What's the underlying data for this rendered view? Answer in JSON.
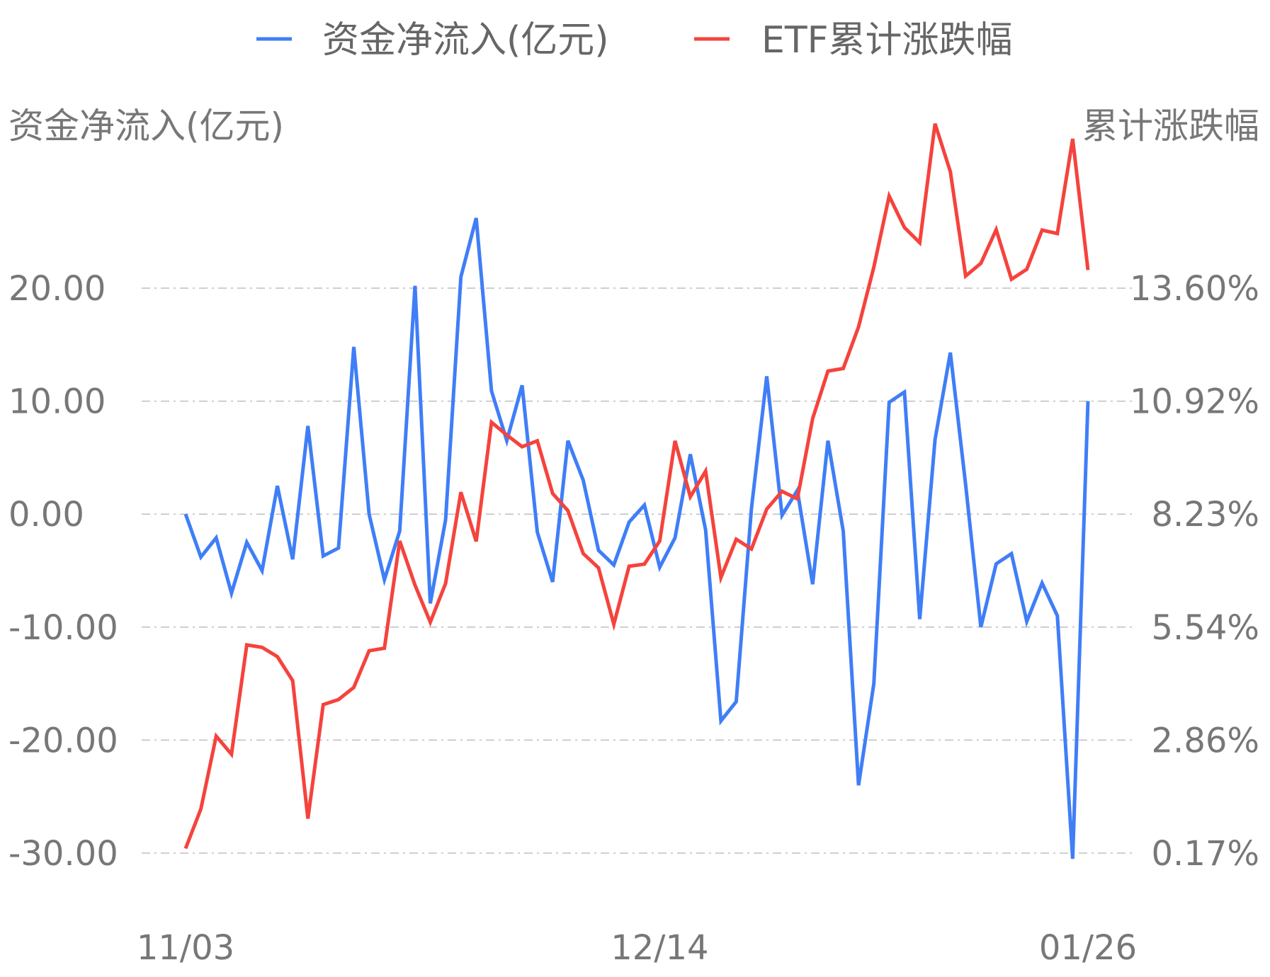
{
  "chart_data": {
    "type": "line",
    "legend": {
      "placement": "top-center"
    },
    "grid": true,
    "y_left": {
      "label": "资金净流入(亿元)",
      "ticks": [
        "20.00",
        "10.00",
        "0.00",
        "-10.00",
        "-20.00",
        "-30.00"
      ],
      "range": [
        -30,
        20
      ]
    },
    "y_right": {
      "label": "累计涨跌幅",
      "ticks": [
        "13.60%",
        "10.92%",
        "8.23%",
        "5.54%",
        "2.86%",
        "0.17%"
      ],
      "range": [
        0.17,
        13.6
      ]
    },
    "x_ticks": [
      "11/03",
      "12/14",
      "01/26"
    ],
    "series": [
      {
        "name": "资金净流入(亿元)",
        "axis": "left",
        "color": "#3f7ef7",
        "values": [
          0.0,
          -3.8,
          -2.1,
          -7.0,
          -2.5,
          -5.0,
          2.5,
          -4.0,
          7.8,
          -3.7,
          -3.0,
          14.8,
          0.0,
          -5.8,
          -1.5,
          20.2,
          -7.9,
          -0.5,
          21.0,
          26.2,
          10.9,
          6.5,
          11.4,
          -1.6,
          -6.0,
          6.5,
          3.0,
          -3.2,
          -4.5,
          -0.7,
          0.8,
          -4.7,
          -2.1,
          5.3,
          -1.4,
          -18.3,
          -16.6,
          0.5,
          12.2,
          -0.1,
          2.1,
          -6.2,
          6.5,
          -1.5,
          -24.0,
          -15.0,
          9.9,
          10.8,
          -9.3,
          6.6,
          14.3,
          2.6,
          -10.0,
          -4.4,
          -3.5,
          -9.5,
          -6.1,
          -9.0,
          -30.5,
          10.0
        ]
      },
      {
        "name": "ETF累计涨跌幅",
        "axis": "right",
        "color": "#f5433d",
        "values": [
          0.28,
          1.22,
          2.95,
          2.52,
          5.12,
          5.06,
          4.84,
          4.27,
          0.99,
          3.7,
          3.82,
          4.11,
          4.98,
          5.04,
          7.59,
          6.54,
          5.66,
          6.58,
          8.75,
          7.58,
          10.41,
          10.11,
          9.83,
          9.97,
          8.72,
          8.31,
          7.29,
          6.95,
          5.61,
          6.99,
          7.04,
          7.59,
          9.97,
          8.64,
          9.25,
          6.72,
          7.63,
          7.4,
          8.35,
          8.77,
          8.59,
          10.5,
          11.63,
          11.69,
          12.68,
          14.1,
          15.79,
          15.04,
          14.68,
          17.51,
          16.37,
          13.89,
          14.19,
          14.99,
          13.81,
          14.05,
          14.98,
          14.9,
          17.15,
          14.03
        ]
      }
    ]
  }
}
